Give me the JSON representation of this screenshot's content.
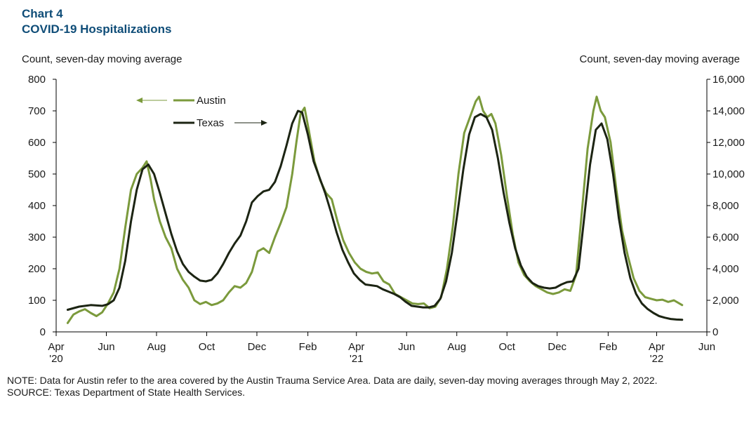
{
  "title": {
    "line1": "Chart 4",
    "line2": "COVID-19 Hospitalizations"
  },
  "axis_caption_left": "Count, seven-day moving average",
  "axis_caption_right": "Count, seven-day moving average",
  "note": "NOTE: Data for Austin refer to the area covered by the Austin Trauma Service Area. Data are daily, seven-day moving averages through May 2, 2022.",
  "source": "SOURCE: Texas Department of State Health Services.",
  "colors": {
    "austin": "#7b9a3c",
    "texas": "#1c2413",
    "axis": "#000000"
  },
  "chart_data": {
    "type": "line",
    "y_left": {
      "min": 0,
      "max": 800,
      "ticks": [
        0,
        100,
        200,
        300,
        400,
        500,
        600,
        700,
        800
      ]
    },
    "y_right": {
      "min": 0,
      "max": 16000,
      "ticks": [
        "0",
        "2,000",
        "4,000",
        "6,000",
        "8,000",
        "10,000",
        "12,000",
        "14,000",
        "16,000"
      ]
    },
    "x_range": [
      "2020-04-01",
      "2022-06-01"
    ],
    "x_ticks": [
      {
        "date": "2020-04-01",
        "label": "Apr",
        "year": "'20"
      },
      {
        "date": "2020-06-01",
        "label": "Jun",
        "year": ""
      },
      {
        "date": "2020-08-01",
        "label": "Aug",
        "year": ""
      },
      {
        "date": "2020-10-01",
        "label": "Oct",
        "year": ""
      },
      {
        "date": "2020-12-01",
        "label": "Dec",
        "year": ""
      },
      {
        "date": "2021-02-01",
        "label": "Feb",
        "year": ""
      },
      {
        "date": "2021-04-01",
        "label": "Apr",
        "year": "'21"
      },
      {
        "date": "2021-06-01",
        "label": "Jun",
        "year": ""
      },
      {
        "date": "2021-08-01",
        "label": "Aug",
        "year": ""
      },
      {
        "date": "2021-10-01",
        "label": "Oct",
        "year": ""
      },
      {
        "date": "2021-12-01",
        "label": "Dec",
        "year": ""
      },
      {
        "date": "2022-02-01",
        "label": "Feb",
        "year": ""
      },
      {
        "date": "2022-04-01",
        "label": "Apr",
        "year": "'22"
      },
      {
        "date": "2022-06-01",
        "label": "Jun",
        "year": ""
      }
    ],
    "series": [
      {
        "name": "Austin",
        "axis": "left",
        "points": [
          [
            "2020-04-15",
            28
          ],
          [
            "2020-04-22",
            55
          ],
          [
            "2020-04-29",
            65
          ],
          [
            "2020-05-06",
            72
          ],
          [
            "2020-05-13",
            60
          ],
          [
            "2020-05-20",
            50
          ],
          [
            "2020-05-27",
            62
          ],
          [
            "2020-06-03",
            90
          ],
          [
            "2020-06-10",
            125
          ],
          [
            "2020-06-17",
            200
          ],
          [
            "2020-06-24",
            330
          ],
          [
            "2020-07-01",
            450
          ],
          [
            "2020-07-08",
            500
          ],
          [
            "2020-07-15",
            520
          ],
          [
            "2020-07-20",
            540
          ],
          [
            "2020-07-25",
            480
          ],
          [
            "2020-07-29",
            420
          ],
          [
            "2020-08-05",
            350
          ],
          [
            "2020-08-12",
            300
          ],
          [
            "2020-08-19",
            265
          ],
          [
            "2020-08-26",
            200
          ],
          [
            "2020-09-02",
            165
          ],
          [
            "2020-09-09",
            140
          ],
          [
            "2020-09-16",
            100
          ],
          [
            "2020-09-23",
            88
          ],
          [
            "2020-09-30",
            95
          ],
          [
            "2020-10-07",
            85
          ],
          [
            "2020-10-14",
            90
          ],
          [
            "2020-10-21",
            100
          ],
          [
            "2020-10-28",
            125
          ],
          [
            "2020-11-04",
            145
          ],
          [
            "2020-11-11",
            140
          ],
          [
            "2020-11-18",
            155
          ],
          [
            "2020-11-25",
            190
          ],
          [
            "2020-12-02",
            255
          ],
          [
            "2020-12-09",
            265
          ],
          [
            "2020-12-16",
            250
          ],
          [
            "2020-12-23",
            300
          ],
          [
            "2020-12-30",
            345
          ],
          [
            "2021-01-06",
            395
          ],
          [
            "2021-01-13",
            500
          ],
          [
            "2021-01-18",
            600
          ],
          [
            "2021-01-23",
            690
          ],
          [
            "2021-01-28",
            710
          ],
          [
            "2021-02-02",
            640
          ],
          [
            "2021-02-09",
            540
          ],
          [
            "2021-02-16",
            480
          ],
          [
            "2021-02-23",
            440
          ],
          [
            "2021-03-02",
            420
          ],
          [
            "2021-03-09",
            350
          ],
          [
            "2021-03-16",
            290
          ],
          [
            "2021-03-23",
            250
          ],
          [
            "2021-03-30",
            220
          ],
          [
            "2021-04-06",
            200
          ],
          [
            "2021-04-13",
            190
          ],
          [
            "2021-04-20",
            185
          ],
          [
            "2021-04-27",
            188
          ],
          [
            "2021-05-04",
            160
          ],
          [
            "2021-05-11",
            150
          ],
          [
            "2021-05-18",
            120
          ],
          [
            "2021-05-25",
            110
          ],
          [
            "2021-06-01",
            100
          ],
          [
            "2021-06-08",
            90
          ],
          [
            "2021-06-15",
            88
          ],
          [
            "2021-06-22",
            90
          ],
          [
            "2021-06-29",
            75
          ],
          [
            "2021-07-06",
            80
          ],
          [
            "2021-07-13",
            110
          ],
          [
            "2021-07-20",
            200
          ],
          [
            "2021-07-27",
            330
          ],
          [
            "2021-08-03",
            500
          ],
          [
            "2021-08-10",
            630
          ],
          [
            "2021-08-17",
            680
          ],
          [
            "2021-08-24",
            730
          ],
          [
            "2021-08-28",
            745
          ],
          [
            "2021-09-02",
            700
          ],
          [
            "2021-09-07",
            680
          ],
          [
            "2021-09-12",
            690
          ],
          [
            "2021-09-17",
            660
          ],
          [
            "2021-09-24",
            560
          ],
          [
            "2021-10-01",
            430
          ],
          [
            "2021-10-08",
            310
          ],
          [
            "2021-10-15",
            220
          ],
          [
            "2021-10-22",
            180
          ],
          [
            "2021-10-29",
            160
          ],
          [
            "2021-11-05",
            145
          ],
          [
            "2021-11-12",
            135
          ],
          [
            "2021-11-19",
            125
          ],
          [
            "2021-11-26",
            120
          ],
          [
            "2021-12-03",
            125
          ],
          [
            "2021-12-10",
            135
          ],
          [
            "2021-12-17",
            130
          ],
          [
            "2021-12-24",
            180
          ],
          [
            "2021-12-31",
            380
          ],
          [
            "2022-01-07",
            580
          ],
          [
            "2022-01-14",
            700
          ],
          [
            "2022-01-18",
            745
          ],
          [
            "2022-01-23",
            700
          ],
          [
            "2022-01-28",
            680
          ],
          [
            "2022-02-04",
            600
          ],
          [
            "2022-02-11",
            450
          ],
          [
            "2022-02-18",
            320
          ],
          [
            "2022-02-25",
            240
          ],
          [
            "2022-03-04",
            170
          ],
          [
            "2022-03-11",
            130
          ],
          [
            "2022-03-18",
            110
          ],
          [
            "2022-03-25",
            105
          ],
          [
            "2022-04-01",
            100
          ],
          [
            "2022-04-08",
            102
          ],
          [
            "2022-04-15",
            95
          ],
          [
            "2022-04-22",
            100
          ],
          [
            "2022-05-02",
            85
          ]
        ]
      },
      {
        "name": "Texas",
        "axis": "right",
        "points": [
          [
            "2020-04-15",
            1400
          ],
          [
            "2020-04-29",
            1600
          ],
          [
            "2020-05-13",
            1700
          ],
          [
            "2020-05-27",
            1650
          ],
          [
            "2020-06-03",
            1750
          ],
          [
            "2020-06-10",
            2000
          ],
          [
            "2020-06-17",
            2800
          ],
          [
            "2020-06-24",
            4500
          ],
          [
            "2020-07-01",
            7000
          ],
          [
            "2020-07-08",
            9000
          ],
          [
            "2020-07-15",
            10300
          ],
          [
            "2020-07-22",
            10600
          ],
          [
            "2020-07-29",
            10000
          ],
          [
            "2020-08-05",
            8800
          ],
          [
            "2020-08-12",
            7500
          ],
          [
            "2020-08-19",
            6200
          ],
          [
            "2020-08-26",
            5100
          ],
          [
            "2020-09-02",
            4300
          ],
          [
            "2020-09-09",
            3800
          ],
          [
            "2020-09-16",
            3500
          ],
          [
            "2020-09-23",
            3250
          ],
          [
            "2020-09-30",
            3200
          ],
          [
            "2020-10-07",
            3300
          ],
          [
            "2020-10-14",
            3700
          ],
          [
            "2020-10-21",
            4300
          ],
          [
            "2020-10-28",
            5000
          ],
          [
            "2020-11-04",
            5600
          ],
          [
            "2020-11-11",
            6100
          ],
          [
            "2020-11-18",
            7000
          ],
          [
            "2020-11-25",
            8200
          ],
          [
            "2020-12-02",
            8600
          ],
          [
            "2020-12-09",
            8900
          ],
          [
            "2020-12-16",
            9000
          ],
          [
            "2020-12-23",
            9500
          ],
          [
            "2020-12-30",
            10500
          ],
          [
            "2021-01-06",
            11800
          ],
          [
            "2021-01-13",
            13200
          ],
          [
            "2021-01-20",
            14000
          ],
          [
            "2021-01-25",
            13900
          ],
          [
            "2021-02-01",
            12500
          ],
          [
            "2021-02-08",
            10800
          ],
          [
            "2021-02-15",
            9800
          ],
          [
            "2021-02-22",
            8800
          ],
          [
            "2021-03-01",
            7600
          ],
          [
            "2021-03-08",
            6300
          ],
          [
            "2021-03-15",
            5200
          ],
          [
            "2021-03-22",
            4400
          ],
          [
            "2021-03-29",
            3700
          ],
          [
            "2021-04-05",
            3300
          ],
          [
            "2021-04-12",
            3000
          ],
          [
            "2021-04-19",
            2950
          ],
          [
            "2021-04-26",
            2900
          ],
          [
            "2021-05-03",
            2700
          ],
          [
            "2021-05-10",
            2550
          ],
          [
            "2021-05-17",
            2400
          ],
          [
            "2021-05-24",
            2200
          ],
          [
            "2021-05-31",
            1900
          ],
          [
            "2021-06-07",
            1650
          ],
          [
            "2021-06-14",
            1600
          ],
          [
            "2021-06-21",
            1550
          ],
          [
            "2021-06-28",
            1550
          ],
          [
            "2021-07-05",
            1650
          ],
          [
            "2021-07-12",
            2100
          ],
          [
            "2021-07-19",
            3200
          ],
          [
            "2021-07-26",
            5000
          ],
          [
            "2021-08-02",
            7600
          ],
          [
            "2021-08-09",
            10300
          ],
          [
            "2021-08-16",
            12500
          ],
          [
            "2021-08-23",
            13600
          ],
          [
            "2021-08-30",
            13800
          ],
          [
            "2021-09-06",
            13600
          ],
          [
            "2021-09-13",
            12800
          ],
          [
            "2021-09-20",
            11000
          ],
          [
            "2021-09-27",
            8800
          ],
          [
            "2021-10-04",
            6900
          ],
          [
            "2021-10-11",
            5300
          ],
          [
            "2021-10-18",
            4200
          ],
          [
            "2021-10-25",
            3500
          ],
          [
            "2021-11-01",
            3100
          ],
          [
            "2021-11-08",
            2900
          ],
          [
            "2021-11-15",
            2800
          ],
          [
            "2021-11-22",
            2750
          ],
          [
            "2021-11-29",
            2800
          ],
          [
            "2021-12-06",
            3000
          ],
          [
            "2021-12-13",
            3150
          ],
          [
            "2021-12-20",
            3200
          ],
          [
            "2021-12-27",
            4000
          ],
          [
            "2022-01-03",
            7300
          ],
          [
            "2022-01-10",
            10600
          ],
          [
            "2022-01-17",
            12800
          ],
          [
            "2022-01-24",
            13200
          ],
          [
            "2022-01-31",
            12200
          ],
          [
            "2022-02-07",
            10000
          ],
          [
            "2022-02-14",
            7200
          ],
          [
            "2022-02-21",
            5000
          ],
          [
            "2022-02-28",
            3400
          ],
          [
            "2022-03-07",
            2400
          ],
          [
            "2022-03-14",
            1800
          ],
          [
            "2022-03-21",
            1450
          ],
          [
            "2022-03-28",
            1200
          ],
          [
            "2022-04-04",
            1000
          ],
          [
            "2022-04-11",
            900
          ],
          [
            "2022-04-18",
            820
          ],
          [
            "2022-04-25",
            780
          ],
          [
            "2022-05-02",
            770
          ]
        ]
      }
    ],
    "legend": [
      {
        "name": "Austin",
        "arrow": "left"
      },
      {
        "name": "Texas",
        "arrow": "right"
      }
    ]
  }
}
